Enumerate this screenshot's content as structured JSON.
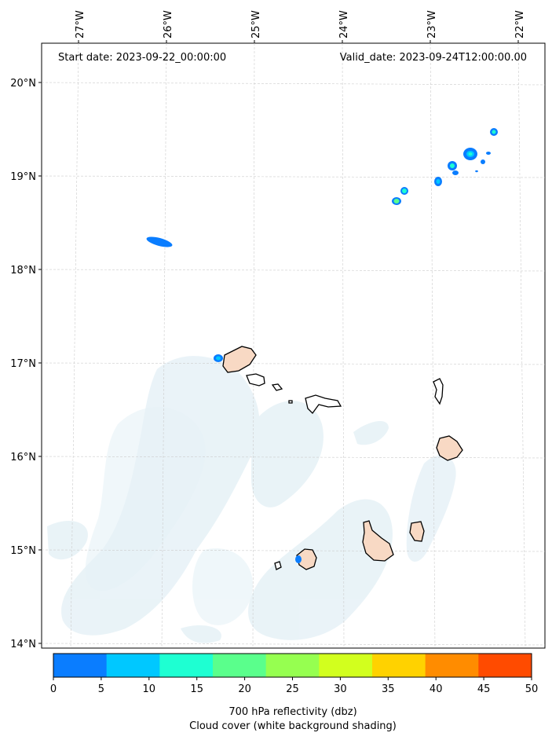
{
  "header": {
    "start_date": "Start date: 2023-09-22_00:00:00",
    "valid_date": "Valid_date: 2023-09-24T12:00:00.00"
  },
  "longitude_labels": [
    "27°W",
    "26°W",
    "25°W",
    "24°W",
    "23°W",
    "22°W"
  ],
  "latitude_labels": [
    "20°N",
    "19°N",
    "18°N",
    "17°N",
    "16°N",
    "15°N",
    "14°N"
  ],
  "colorbar": {
    "ticks": [
      "0",
      "5",
      "10",
      "15",
      "20",
      "25",
      "30",
      "35",
      "40",
      "45",
      "50"
    ],
    "colors": [
      "#0a7dff",
      "#00c8ff",
      "#1effd2",
      "#5aff8c",
      "#96ff50",
      "#d2ff1e",
      "#ffd200",
      "#ff8c00",
      "#ff4b00"
    ],
    "label_line1": "700 hPa reflectivity (dbz)",
    "label_line2": "Cloud cover (white background shading)"
  }
}
